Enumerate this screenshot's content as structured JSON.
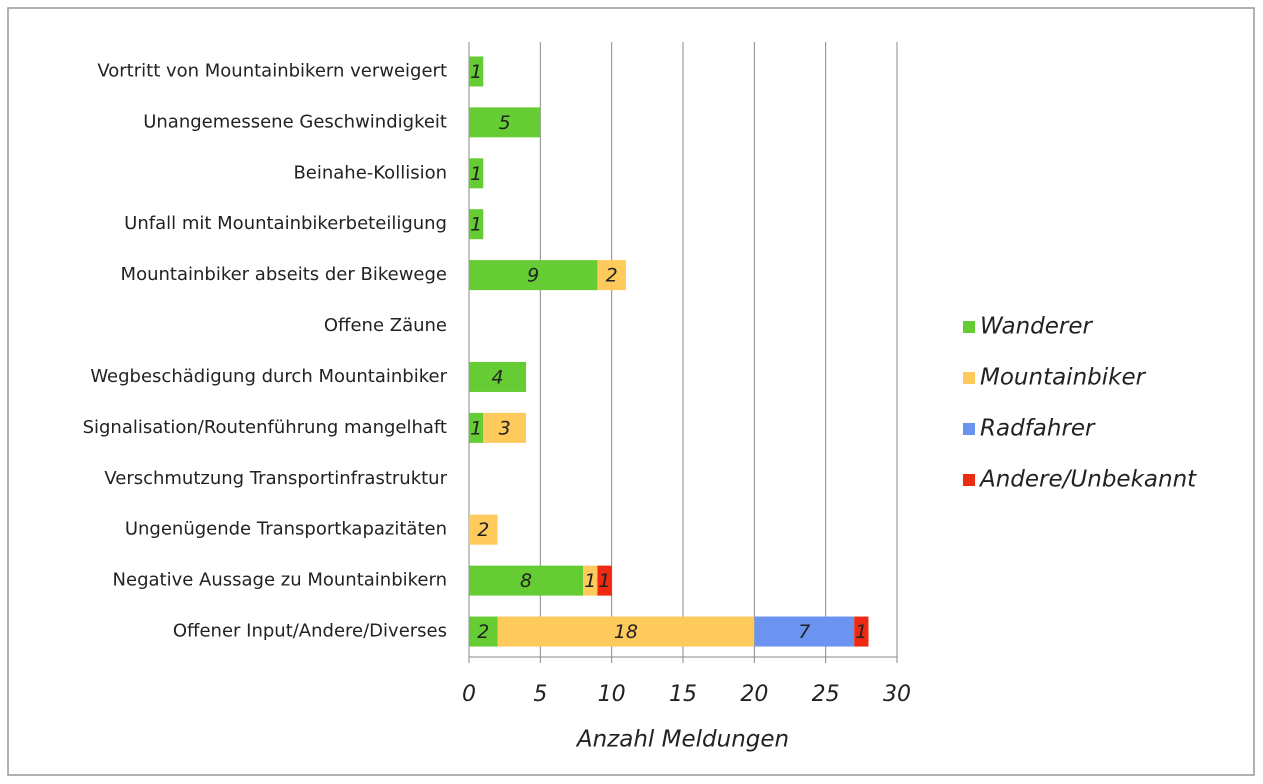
{
  "chart_data": {
    "type": "bar",
    "orientation": "horizontal",
    "stacked": true,
    "categories": [
      "Vortritt von Mountainbikern verweigert",
      "Unangemessene Geschwindigkeit",
      "Beinahe-Kollision",
      "Unfall mit Mountainbikerbeteiligung",
      "Mountainbiker abseits der Bikewege",
      "Offene Zäune",
      "Wegbeschädigung durch Mountainbiker",
      "Signalisation/Routenführung mangelhaft",
      "Verschmutzung Transportinfrastruktur",
      "Ungenügende Transportkapazitäten",
      "Negative Aussage zu Mountainbikern",
      "Offener Input/Andere/Diverses"
    ],
    "series": [
      {
        "name": "Wanderer",
        "color": "#66cc33",
        "values": [
          1,
          5,
          1,
          1,
          9,
          null,
          4,
          1,
          null,
          null,
          8,
          2
        ]
      },
      {
        "name": "Mountainbiker",
        "color": "#ffca5c",
        "values": [
          null,
          null,
          null,
          null,
          2,
          null,
          null,
          3,
          null,
          2,
          1,
          18
        ]
      },
      {
        "name": "Radfahrer",
        "color": "#6b93f0",
        "values": [
          null,
          null,
          null,
          null,
          null,
          null,
          null,
          null,
          null,
          null,
          null,
          7
        ]
      },
      {
        "name": "Andere/Unbekannt",
        "color": "#ee2a12",
        "values": [
          null,
          null,
          null,
          null,
          null,
          null,
          null,
          null,
          null,
          null,
          1,
          1
        ]
      }
    ],
    "xlabel": "Anzahl Meldungen",
    "xlim": [
      0,
      30
    ],
    "xticks": [
      0,
      5,
      10,
      15,
      20,
      25,
      30
    ],
    "grid": true,
    "legend": "right"
  }
}
